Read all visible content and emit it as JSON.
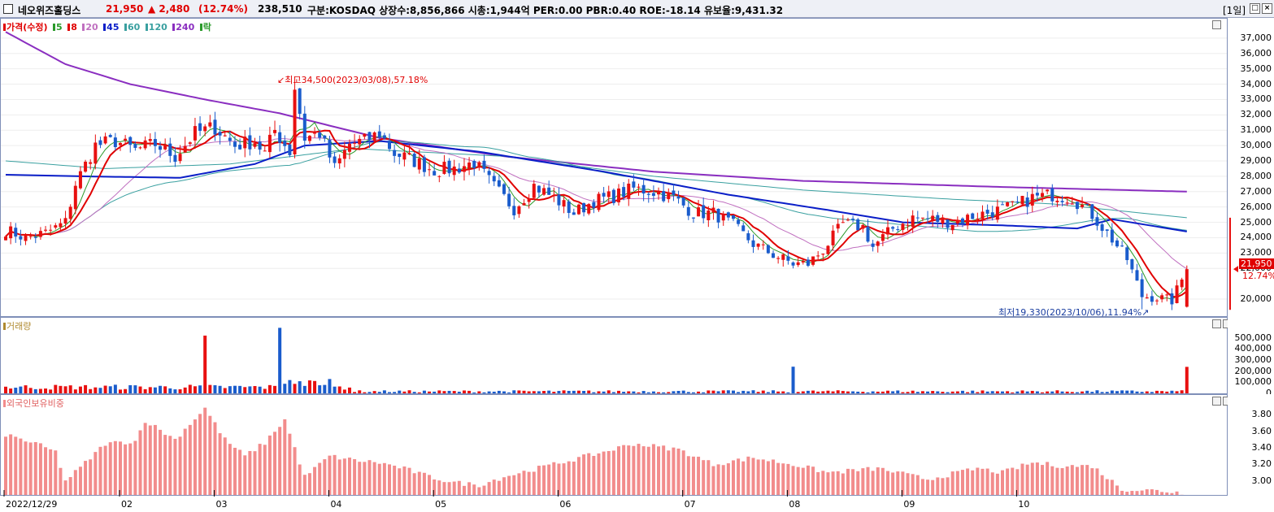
{
  "header": {
    "name": "네오위즈홀딩스",
    "price": "21,950",
    "change": "▲ 2,480",
    "change_pct": "(12.74%)",
    "volume": "238,510",
    "info": "구분:KOSDAQ 상장수:8,856,866 시총:1,944억 PER:0.00 PBR:0.40 ROE:-18.14 유보율:9,431.32",
    "period": "[1일]"
  },
  "colors": {
    "up": "#e81010",
    "down": "#1a5ccc",
    "ma5": "#2a9a2a",
    "ma8": "#e00000",
    "ma20": "#c070c0",
    "ma45": "#0a1ec8",
    "ma60": "#3aa0a0",
    "ma120": "#3aa0a0",
    "ma240": "#8a2ec0",
    "foreign": "#f28c8c"
  },
  "price_legend": [
    "가격(수정)",
    "5",
    "8",
    "20",
    "45",
    "60",
    "120",
    "240",
    "락"
  ],
  "volume_legend": "거래량",
  "foreign_legend": "외국인보유비중",
  "annotations": {
    "high": "최고34,500(2023/03/08),57.18%",
    "low": "최저19,330(2023/10/06),11.94%"
  },
  "current_price_tag": "21,950",
  "current_pct_tag": "12.74%",
  "chart_data": [
    {
      "type": "candlestick",
      "title": "가격(수정)",
      "yticks": [
        "37,000",
        "36,000",
        "35,000",
        "34,000",
        "33,000",
        "32,000",
        "31,000",
        "30,000",
        "29,000",
        "28,000",
        "27,000",
        "26,000",
        "25,000",
        "24,000",
        "23,000",
        "22,000",
        "20,000"
      ],
      "ylim": [
        19100,
        38000
      ],
      "x_labels": [
        "2022/12/29",
        "02",
        "03",
        "04",
        "05",
        "06",
        "07",
        "08",
        "09",
        "10"
      ],
      "close_anchors": [
        [
          0,
          24500
        ],
        [
          4,
          24000
        ],
        [
          8,
          24300
        ],
        [
          12,
          25000
        ],
        [
          14,
          27500
        ],
        [
          18,
          30000
        ],
        [
          22,
          30300
        ],
        [
          26,
          29700
        ],
        [
          30,
          30100
        ],
        [
          34,
          29300
        ],
        [
          38,
          30800
        ],
        [
          42,
          31200
        ],
        [
          46,
          30000
        ],
        [
          50,
          30300
        ],
        [
          52,
          29500
        ],
        [
          54,
          31000
        ],
        [
          57,
          29600
        ],
        [
          58,
          33800
        ],
        [
          60,
          30500
        ],
        [
          63,
          30800
        ],
        [
          66,
          28500
        ],
        [
          69,
          30100
        ],
        [
          72,
          30300
        ],
        [
          75,
          30800
        ],
        [
          78,
          29500
        ],
        [
          82,
          29000
        ],
        [
          86,
          28400
        ],
        [
          90,
          28500
        ],
        [
          94,
          28900
        ],
        [
          98,
          27300
        ],
        [
          102,
          25900
        ],
        [
          106,
          27400
        ],
        [
          110,
          26600
        ],
        [
          114,
          25600
        ],
        [
          118,
          26400
        ],
        [
          122,
          26700
        ],
        [
          126,
          27200
        ],
        [
          130,
          27000
        ],
        [
          134,
          26600
        ],
        [
          138,
          25600
        ],
        [
          142,
          25600
        ],
        [
          146,
          24800
        ],
        [
          150,
          23600
        ],
        [
          154,
          22900
        ],
        [
          158,
          22300
        ],
        [
          161,
          22300
        ],
        [
          164,
          23200
        ],
        [
          168,
          24900
        ],
        [
          172,
          24700
        ],
        [
          174,
          23400
        ],
        [
          178,
          24600
        ],
        [
          182,
          25300
        ],
        [
          186,
          25200
        ],
        [
          190,
          25000
        ],
        [
          194,
          25400
        ],
        [
          198,
          25700
        ],
        [
          202,
          26000
        ],
        [
          206,
          26600
        ],
        [
          210,
          26800
        ],
        [
          214,
          26600
        ],
        [
          218,
          25500
        ],
        [
          222,
          23900
        ],
        [
          225,
          22600
        ],
        [
          228,
          20200
        ],
        [
          231,
          20100
        ],
        [
          234,
          19900
        ],
        [
          237,
          21950
        ]
      ],
      "moving_averages": [
        "5",
        "8",
        "20",
        "45",
        "60",
        "120",
        "240"
      ],
      "ma240_anchors": [
        [
          0,
          37400
        ],
        [
          12,
          35300
        ],
        [
          25,
          34000
        ],
        [
          40,
          33000
        ],
        [
          55,
          32100
        ],
        [
          75,
          30500
        ],
        [
          100,
          29300
        ],
        [
          130,
          28300
        ],
        [
          160,
          27700
        ],
        [
          200,
          27300
        ],
        [
          237,
          27000
        ]
      ],
      "ma120_anchors": [
        [
          0,
          29000
        ],
        [
          20,
          28500
        ],
        [
          45,
          28800
        ],
        [
          70,
          29800
        ],
        [
          100,
          29300
        ],
        [
          130,
          28000
        ],
        [
          160,
          27100
        ],
        [
          190,
          26500
        ],
        [
          210,
          26200
        ],
        [
          237,
          25300
        ]
      ],
      "ma45_anchors": [
        [
          0,
          28100
        ],
        [
          15,
          28000
        ],
        [
          35,
          27900
        ],
        [
          50,
          28800
        ],
        [
          60,
          30000
        ],
        [
          75,
          30300
        ],
        [
          95,
          29600
        ],
        [
          120,
          28300
        ],
        [
          145,
          26800
        ],
        [
          165,
          25800
        ],
        [
          180,
          25000
        ],
        [
          200,
          24800
        ],
        [
          215,
          24600
        ],
        [
          222,
          25200
        ],
        [
          237,
          24400
        ]
      ]
    },
    {
      "type": "bar",
      "title": "거래량",
      "yticks": [
        "500,000",
        "400,000",
        "300,000",
        "200,000",
        "100,000",
        "0"
      ],
      "ylim": [
        0,
        600000
      ],
      "spikes": [
        [
          40,
          520000
        ],
        [
          55,
          590000
        ],
        [
          158,
          240000
        ],
        [
          237,
          238510
        ]
      ],
      "base_level": 40000
    },
    {
      "type": "bar",
      "title": "외국인보유비중",
      "yticks": [
        "3.80",
        "3.60",
        "3.40",
        "3.20",
        "3.00"
      ],
      "ylim": [
        2.83,
        3.93
      ],
      "anchors": [
        [
          0,
          3.56
        ],
        [
          6,
          3.45
        ],
        [
          10,
          3.35
        ],
        [
          12,
          3.0
        ],
        [
          15,
          3.16
        ],
        [
          20,
          3.45
        ],
        [
          26,
          3.48
        ],
        [
          28,
          3.73
        ],
        [
          34,
          3.5
        ],
        [
          40,
          3.88
        ],
        [
          44,
          3.5
        ],
        [
          48,
          3.3
        ],
        [
          52,
          3.46
        ],
        [
          56,
          3.74
        ],
        [
          60,
          3.05
        ],
        [
          65,
          3.3
        ],
        [
          70,
          3.25
        ],
        [
          75,
          3.22
        ],
        [
          80,
          3.15
        ],
        [
          85,
          3.05
        ],
        [
          90,
          2.98
        ],
        [
          95,
          2.95
        ],
        [
          100,
          3.05
        ],
        [
          110,
          3.2
        ],
        [
          120,
          3.35
        ],
        [
          126,
          3.45
        ],
        [
          135,
          3.38
        ],
        [
          142,
          3.2
        ],
        [
          150,
          3.28
        ],
        [
          158,
          3.2
        ],
        [
          165,
          3.1
        ],
        [
          175,
          3.15
        ],
        [
          185,
          3.02
        ],
        [
          195,
          3.15
        ],
        [
          200,
          3.1
        ],
        [
          206,
          3.22
        ],
        [
          212,
          3.18
        ],
        [
          218,
          3.18
        ],
        [
          224,
          2.9
        ],
        [
          232,
          2.88
        ],
        [
          237,
          2.85
        ]
      ]
    }
  ]
}
